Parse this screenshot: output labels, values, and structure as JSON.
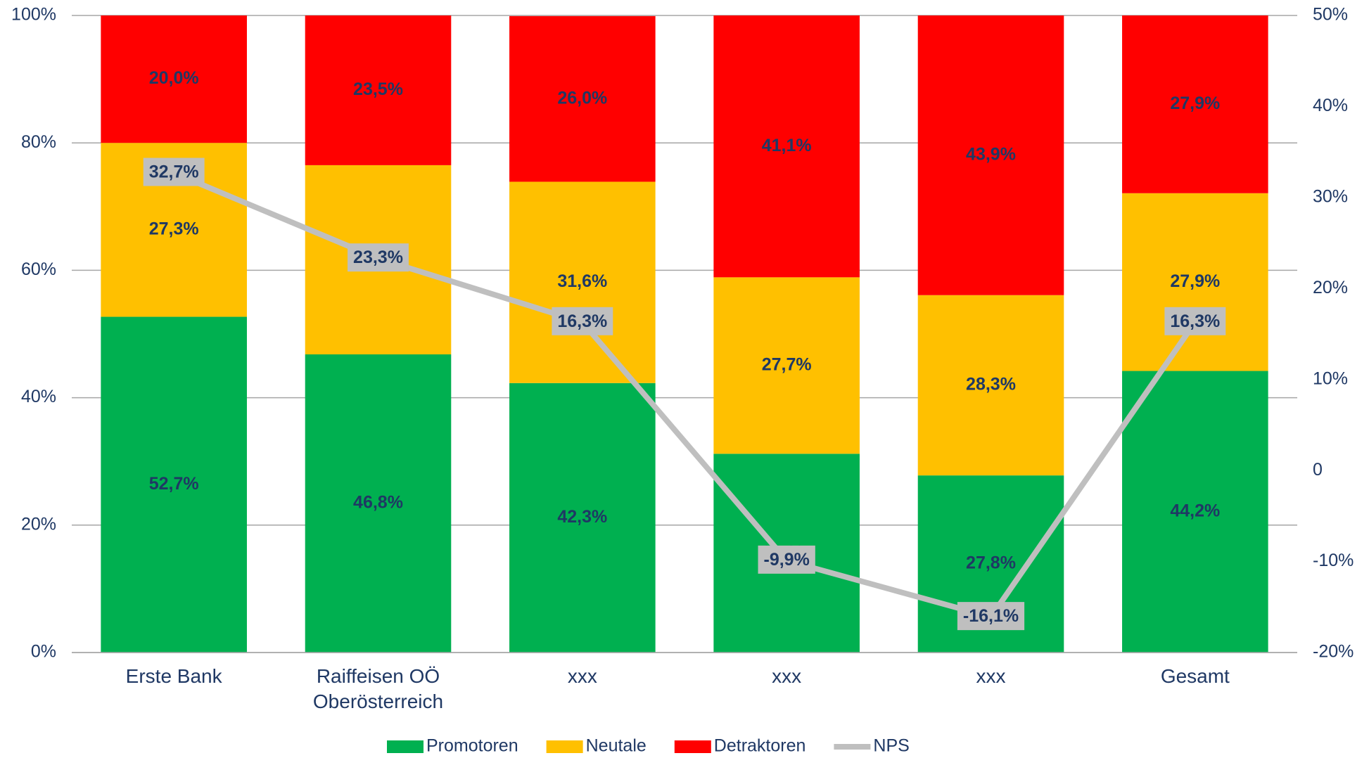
{
  "chart_data": {
    "type": "stacked_bar_line",
    "categories": [
      "Erste Bank",
      "Raiffeisen OÖ\nOberösterreich",
      "xxx",
      "xxx",
      "xxx",
      "Gesamt"
    ],
    "series": [
      {
        "name": "Promotoren",
        "color": "#00b050",
        "values": [
          52.7,
          46.8,
          42.3,
          31.2,
          27.8,
          44.2
        ],
        "value_labels": [
          "52,7%",
          "46,8%",
          "42,3%",
          "31,2%",
          "27,8%",
          "44,2%"
        ]
      },
      {
        "name": "Neutale",
        "color": "#ffc000",
        "values": [
          27.3,
          29.7,
          31.6,
          27.7,
          28.3,
          27.9
        ],
        "value_labels": [
          "27,3%",
          "29,7%",
          "31,6%",
          "27,7%",
          "28,3%",
          "27,9%"
        ]
      },
      {
        "name": "Detraktoren",
        "color": "#ff0000",
        "values": [
          20.0,
          23.5,
          26.0,
          41.1,
          43.9,
          27.9
        ],
        "value_labels": [
          "20,0%",
          "23,5%",
          "26,0%",
          "41,1%",
          "43,9%",
          "27,9%"
        ]
      },
      {
        "name": "NPS",
        "color": "#bfbfbf",
        "axis": "y2",
        "values": [
          32.7,
          23.3,
          16.3,
          -9.9,
          -16.1,
          16.3
        ],
        "value_labels": [
          "32,7%",
          "23,3%",
          "16,3%",
          "-9,9%",
          "-16,1%",
          "16,3%"
        ]
      }
    ],
    "ylim": [
      0,
      100
    ],
    "yticks": [
      {
        "value": 0,
        "label": "0%"
      },
      {
        "value": 20,
        "label": "20%"
      },
      {
        "value": 40,
        "label": "40%"
      },
      {
        "value": 60,
        "label": "60%"
      },
      {
        "value": 80,
        "label": "80%"
      },
      {
        "value": 100,
        "label": "100%"
      }
    ],
    "y2lim": [
      -20,
      50
    ],
    "y2ticks": [
      {
        "value": -20,
        "label": "-20%"
      },
      {
        "value": -10,
        "label": "-10%"
      },
      {
        "value": 0,
        "label": "0"
      },
      {
        "value": 10,
        "label": "10%"
      },
      {
        "value": 20,
        "label": "20%"
      },
      {
        "value": 30,
        "label": "30%"
      },
      {
        "value": 40,
        "label": "40%"
      },
      {
        "value": 50,
        "label": "50%"
      }
    ],
    "grid": true,
    "legend": "bottom"
  }
}
